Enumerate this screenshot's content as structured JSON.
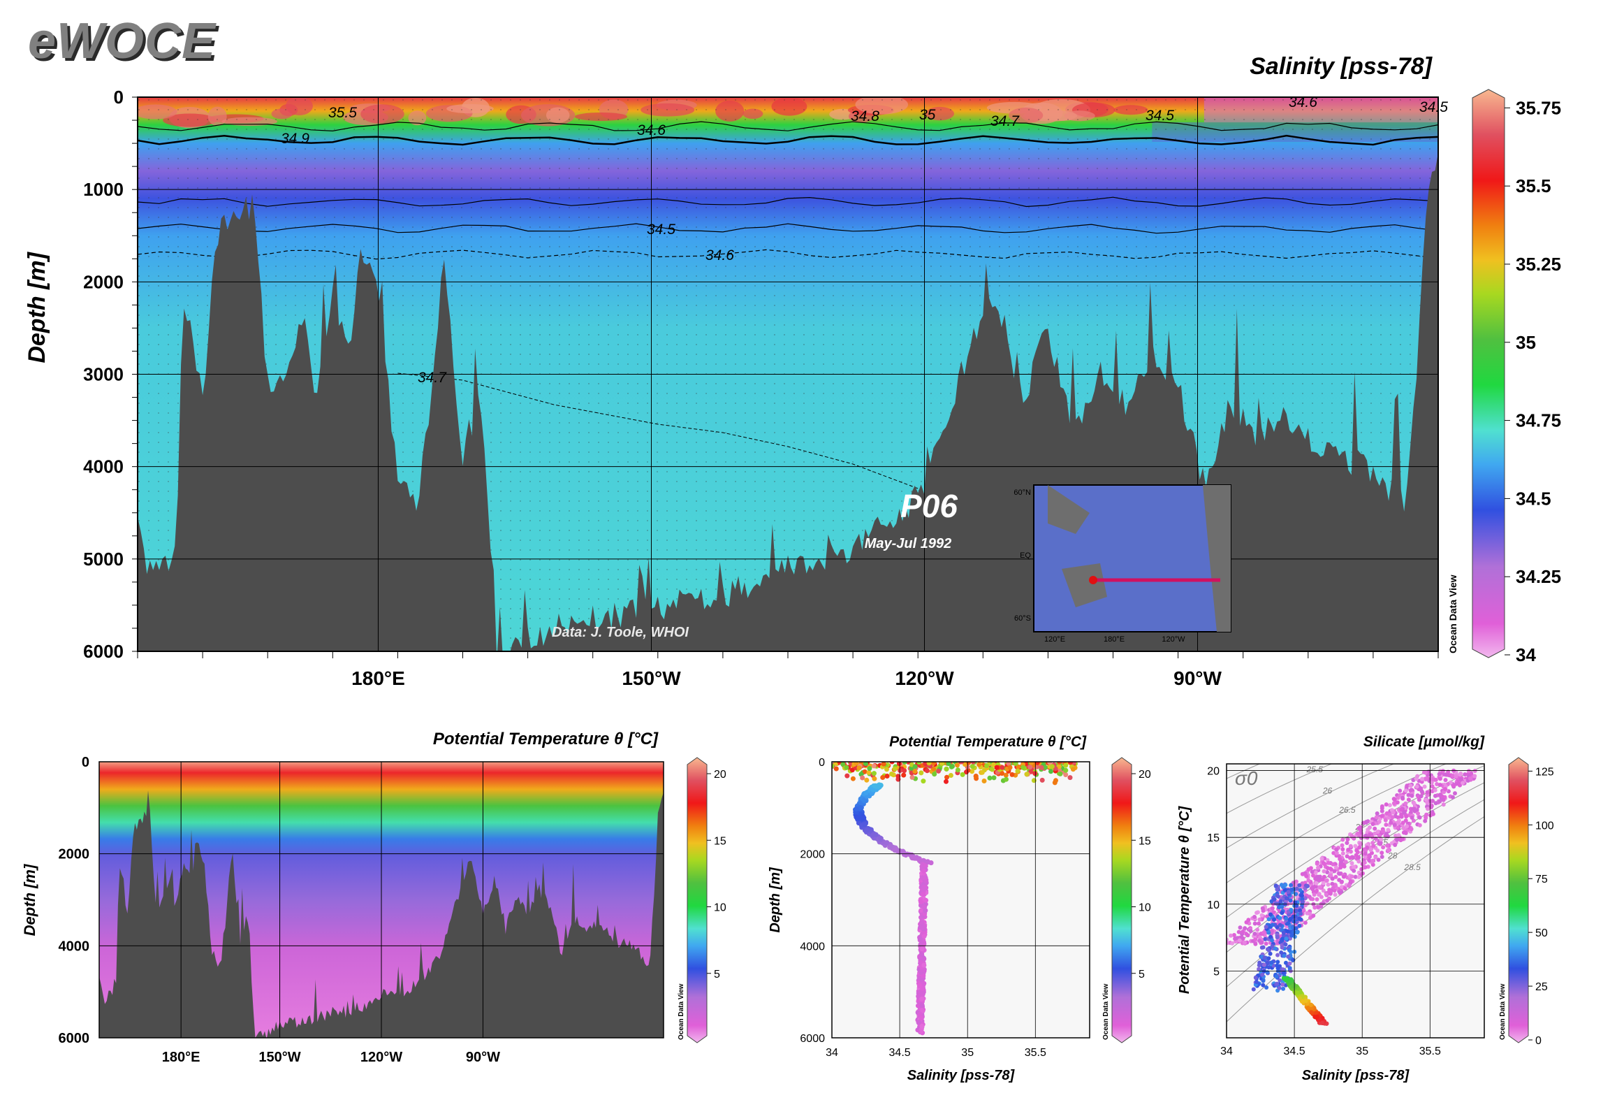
{
  "logo": "eWOCE",
  "chart_data": [
    {
      "id": "main_section",
      "type": "heatmap",
      "title": "Salinity [pss-78]",
      "ylabel": "Depth [m]",
      "xlabel": "",
      "y_ticks": [
        0,
        1000,
        2000,
        3000,
        4000,
        5000,
        6000
      ],
      "ylim": [
        0,
        6000
      ],
      "x_ticks": [
        "180°E",
        "150°W",
        "120°W",
        "90°W"
      ],
      "colorbar": {
        "ticks": [
          "35.75",
          "35.5",
          "35.25",
          "35",
          "34.75",
          "34.5",
          "34.25",
          "34"
        ],
        "range": [
          34,
          35.8
        ],
        "label": "Ocean Data View"
      },
      "contour_labels": [
        "35.5",
        "34.9",
        "34.6",
        "34.8",
        "35",
        "34.7",
        "34.5",
        "34.6",
        "34.5",
        "34.5",
        "34.6",
        "34.7"
      ],
      "cruise": "P06",
      "dates": "May-Jul 1992",
      "credit": "Data: J. Toole, WHOI",
      "inset_map": {
        "lat_labels": [
          "60°N",
          "EQ",
          "60°S"
        ],
        "lon_labels": [
          "120°E",
          "180°E",
          "120°W"
        ]
      },
      "layers": [
        {
          "depth_m": 0,
          "salinity": 35.6
        },
        {
          "depth_m": 150,
          "salinity": 35.3
        },
        {
          "depth_m": 300,
          "salinity": 34.9
        },
        {
          "depth_m": 500,
          "salinity": 34.6
        },
        {
          "depth_m": 800,
          "salinity": 34.35
        },
        {
          "depth_m": 1100,
          "salinity": 34.45
        },
        {
          "depth_m": 1500,
          "salinity": 34.6
        },
        {
          "depth_m": 2500,
          "salinity": 34.68
        },
        {
          "depth_m": 6000,
          "salinity": 34.7
        }
      ]
    },
    {
      "id": "temp_section",
      "type": "heatmap",
      "title": "Potential Temperature θ [°C]",
      "ylabel": "Depth [m]",
      "y_ticks": [
        0,
        2000,
        4000,
        6000
      ],
      "ylim": [
        0,
        6000
      ],
      "x_ticks": [
        "180°E",
        "150°W",
        "120°W",
        "90°W"
      ],
      "colorbar": {
        "ticks": [
          "20",
          "15",
          "10",
          "5"
        ],
        "range": [
          0,
          21
        ],
        "label": "Ocean Data View"
      }
    },
    {
      "id": "temp_profile",
      "type": "scatter",
      "title": "Potential Temperature θ [°C]",
      "xlabel": "Salinity [pss-78]",
      "ylabel": "Depth [m]",
      "x_ticks": [
        "34",
        "34.5",
        "35",
        "35.5"
      ],
      "y_ticks": [
        "0",
        "2000",
        "4000",
        "6000"
      ],
      "xlim": [
        34,
        35.9
      ],
      "ylim": [
        0,
        6000
      ],
      "colorbar": {
        "ticks": [
          "20",
          "15",
          "10",
          "5"
        ],
        "range": [
          0,
          21
        ],
        "label": "Ocean Data View"
      }
    },
    {
      "id": "ts_diagram",
      "type": "scatter",
      "title": "Silicate [µmol/kg]",
      "xlabel": "Salinity [pss-78]",
      "ylabel": "Potential Temperature θ [°C]",
      "x_ticks": [
        "34",
        "34.5",
        "35",
        "35.5"
      ],
      "y_ticks": [
        "20",
        "15",
        "10",
        "5"
      ],
      "xlim": [
        34,
        35.9
      ],
      "ylim": [
        0,
        20.5
      ],
      "sigma_label": "σ0",
      "isopycnal_labels": [
        "24.5",
        "25",
        "25.5",
        "26",
        "26.5",
        "27",
        "27.5",
        "28",
        "28.5"
      ],
      "colorbar": {
        "ticks": [
          "125",
          "100",
          "75",
          "50",
          "25",
          "0"
        ],
        "range": [
          0,
          130
        ],
        "label": "Ocean Data View"
      }
    }
  ]
}
